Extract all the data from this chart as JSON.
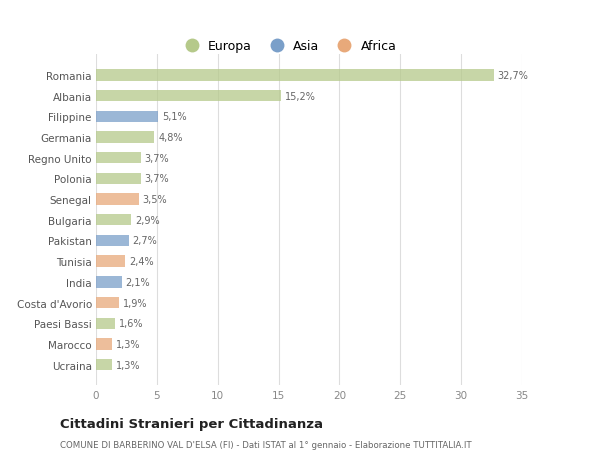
{
  "categories": [
    "Ucraina",
    "Marocco",
    "Paesi Bassi",
    "Costa d'Avorio",
    "India",
    "Tunisia",
    "Pakistan",
    "Bulgaria",
    "Senegal",
    "Polonia",
    "Regno Unito",
    "Germania",
    "Filippine",
    "Albania",
    "Romania"
  ],
  "values": [
    1.3,
    1.3,
    1.6,
    1.9,
    2.1,
    2.4,
    2.7,
    2.9,
    3.5,
    3.7,
    3.7,
    4.8,
    5.1,
    15.2,
    32.7
  ],
  "colors": [
    "#b5c98a",
    "#e8a97a",
    "#b5c98a",
    "#e8a97a",
    "#7a9fc9",
    "#e8a97a",
    "#7a9fc9",
    "#b5c98a",
    "#e8a97a",
    "#b5c98a",
    "#b5c98a",
    "#b5c98a",
    "#7a9fc9",
    "#b5c98a",
    "#b5c98a"
  ],
  "labels": [
    "1,3%",
    "1,3%",
    "1,6%",
    "1,9%",
    "2,1%",
    "2,4%",
    "2,7%",
    "2,9%",
    "3,5%",
    "3,7%",
    "3,7%",
    "4,8%",
    "5,1%",
    "15,2%",
    "32,7%"
  ],
  "title": "Cittadini Stranieri per Cittadinanza",
  "subtitle": "COMUNE DI BARBERINO VAL D'ELSA (FI) - Dati ISTAT al 1° gennaio - Elaborazione TUTTITALIA.IT",
  "legend_labels": [
    "Europa",
    "Asia",
    "Africa"
  ],
  "legend_colors": [
    "#b5c98a",
    "#7a9fc9",
    "#e8a97a"
  ],
  "xlim": [
    0,
    35
  ],
  "xticks": [
    0,
    5,
    10,
    15,
    20,
    25,
    30,
    35
  ],
  "background_color": "#ffffff",
  "plot_bg_color": "#ffffff",
  "grid_color": "#dddddd",
  "bar_height": 0.55
}
